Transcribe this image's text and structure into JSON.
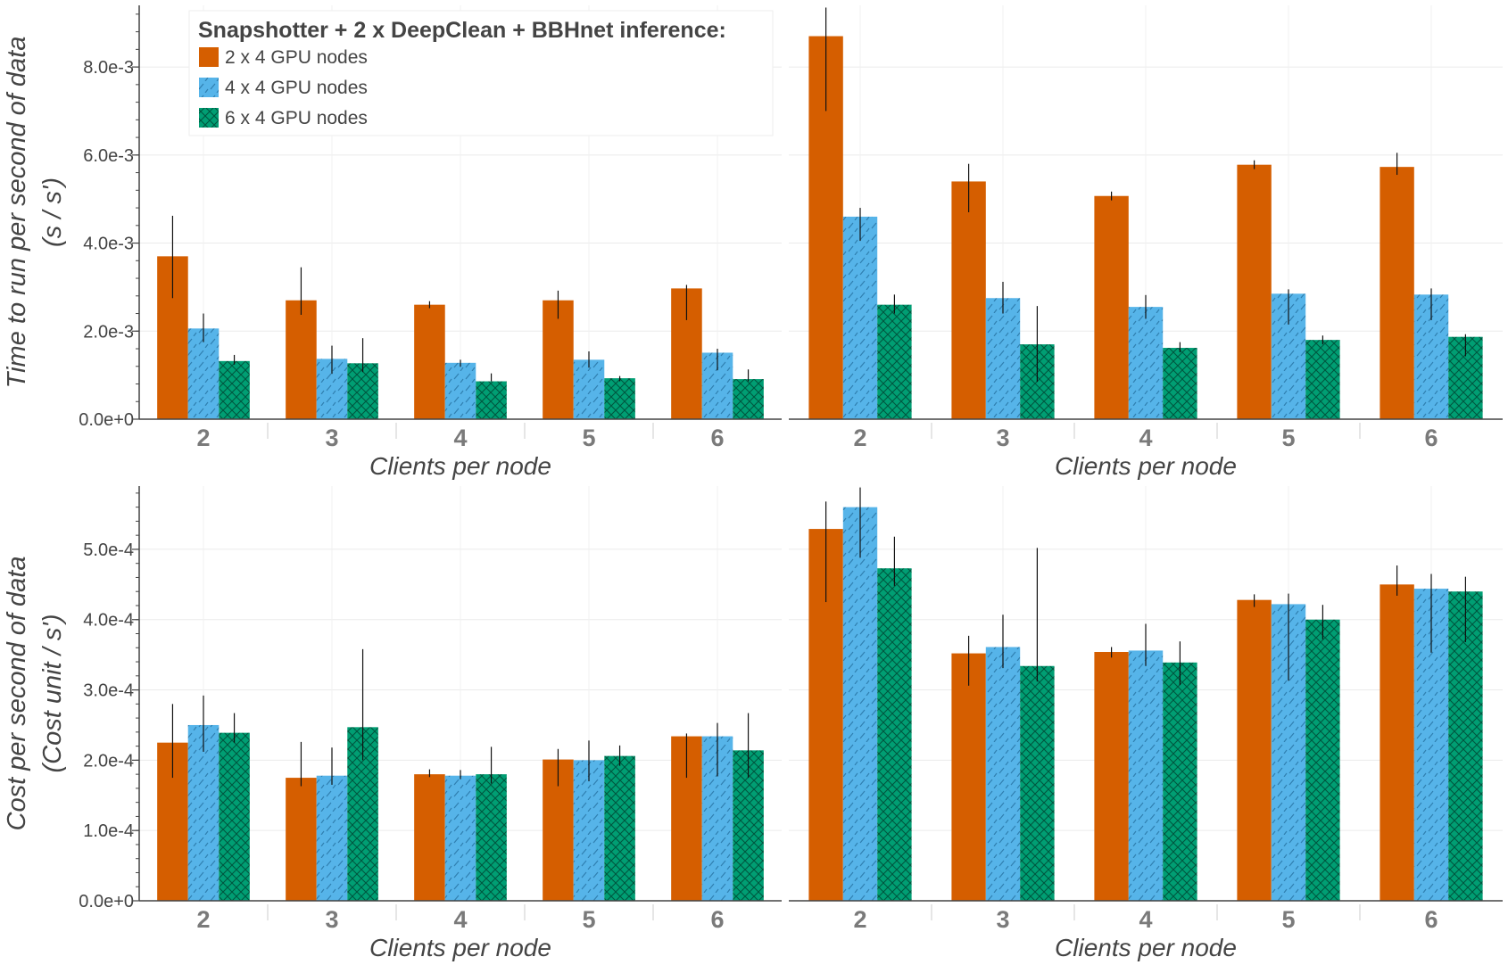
{
  "legend": {
    "title": "Snapshotter + 2 x DeepClean + BBHnet inference:",
    "placement": "top-left"
  },
  "series_styles": [
    {
      "name": "2 x 4 GPU nodes",
      "color": "#d55e00",
      "pattern": "solid"
    },
    {
      "name": "4 x 4 GPU nodes",
      "color": "#56b4e9",
      "pattern": "dashes"
    },
    {
      "name": "6 x 4 GPU nodes",
      "color": "#009e73",
      "pattern": "crosshatch"
    }
  ],
  "chart_data": [
    {
      "type": "bar",
      "panel": "top-left",
      "categories": [
        "2",
        "3",
        "4",
        "5",
        "6"
      ],
      "xlabel": "Clients per node",
      "ylabel": [
        "Time to run per second of data",
        "(s / s')"
      ],
      "ylim": [
        0,
        0.0094
      ],
      "yticks": [
        0,
        0.002,
        0.004,
        0.006,
        0.008
      ],
      "ytick_labels": [
        "0.0e+0",
        "2.0e-3",
        "4.0e-3",
        "6.0e-3",
        "8.0e-3"
      ],
      "grid": true,
      "series": [
        {
          "name": "2 x 4 GPU nodes",
          "values": [
            0.0037,
            0.0027,
            0.0026,
            0.0027,
            0.00297
          ],
          "err_low": [
            0.00275,
            0.00237,
            0.00252,
            0.00228,
            0.00225
          ],
          "err_high": [
            0.00462,
            0.00345,
            0.00268,
            0.00292,
            0.00305
          ]
        },
        {
          "name": "4 x 4 GPU nodes",
          "values": [
            0.00206,
            0.00137,
            0.00128,
            0.00135,
            0.00151
          ],
          "err_low": [
            0.00175,
            0.00103,
            0.00119,
            0.00117,
            0.00111
          ],
          "err_high": [
            0.0024,
            0.00167,
            0.00135,
            0.00154,
            0.0016
          ]
        },
        {
          "name": "6 x 4 GPU nodes",
          "values": [
            0.00132,
            0.00127,
            0.00086,
            0.00093,
            0.00091
          ],
          "err_low": [
            0.00124,
            0.00107,
            0.00086,
            0.00086,
            0.00086
          ],
          "err_high": [
            0.00146,
            0.00184,
            0.00104,
            0.00098,
            0.00113
          ]
        }
      ]
    },
    {
      "type": "bar",
      "panel": "top-right",
      "categories": [
        "2",
        "3",
        "4",
        "5",
        "6"
      ],
      "xlabel": "Clients per node",
      "ylim": [
        0,
        0.0094
      ],
      "yticks": [
        0,
        0.002,
        0.004,
        0.006,
        0.008
      ],
      "grid": true,
      "series": [
        {
          "name": "2 x 4 GPU nodes",
          "values": [
            0.0087,
            0.0054,
            0.00507,
            0.00578,
            0.00573
          ],
          "err_low": [
            0.007,
            0.0047,
            0.00497,
            0.00568,
            0.00555
          ],
          "err_high": [
            0.00935,
            0.0058,
            0.00517,
            0.00588,
            0.00605
          ]
        },
        {
          "name": "4 x 4 GPU nodes",
          "values": [
            0.0046,
            0.00275,
            0.00255,
            0.00285,
            0.00283
          ],
          "err_low": [
            0.00405,
            0.0024,
            0.00228,
            0.00215,
            0.00225
          ],
          "err_high": [
            0.0048,
            0.00312,
            0.00282,
            0.00295,
            0.00297
          ]
        },
        {
          "name": "6 x 4 GPU nodes",
          "values": [
            0.0026,
            0.0017,
            0.00162,
            0.0018,
            0.00187
          ],
          "err_low": [
            0.0024,
            0.00085,
            0.00152,
            0.0017,
            0.00143
          ],
          "err_high": [
            0.00283,
            0.00257,
            0.00175,
            0.0019,
            0.00193
          ]
        }
      ]
    },
    {
      "type": "bar",
      "panel": "bottom-left",
      "categories": [
        "2",
        "3",
        "4",
        "5",
        "6"
      ],
      "xlabel": "Clients per node",
      "ylabel": [
        "Cost per second of data",
        "(Cost unit / s')"
      ],
      "ylim": [
        0,
        0.00059
      ],
      "yticks": [
        0,
        0.0001,
        0.0002,
        0.0003,
        0.0004,
        0.0005
      ],
      "ytick_labels": [
        "0.0e+0",
        "1.0e-4",
        "2.0e-4",
        "3.0e-4",
        "4.0e-4",
        "5.0e-4"
      ],
      "grid": true,
      "series": [
        {
          "name": "2 x 4 GPU nodes",
          "values": [
            0.000225,
            0.000175,
            0.00018,
            0.000201,
            0.000234
          ],
          "err_low": [
            0.000175,
            0.000163,
            0.000176,
            0.000163,
            0.000175
          ],
          "err_high": [
            0.00028,
            0.000226,
            0.000187,
            0.000216,
            0.000238
          ]
        },
        {
          "name": "4 x 4 GPU nodes",
          "values": [
            0.00025,
            0.000178,
            0.000178,
            0.0002,
            0.000234
          ],
          "err_low": [
            0.000212,
            0.000165,
            0.000173,
            0.00017,
            0.000177
          ],
          "err_high": [
            0.000292,
            0.000218,
            0.000186,
            0.000228,
            0.000253
          ]
        },
        {
          "name": "6 x 4 GPU nodes",
          "values": [
            0.000239,
            0.000247,
            0.00018,
            0.000206,
            0.000214
          ],
          "err_low": [
            0.000225,
            0.0002,
            0.000167,
            0.000192,
            0.000175
          ],
          "err_high": [
            0.000267,
            0.000358,
            0.000219,
            0.000221,
            0.000267
          ]
        }
      ]
    },
    {
      "type": "bar",
      "panel": "bottom-right",
      "categories": [
        "2",
        "3",
        "4",
        "5",
        "6"
      ],
      "xlabel": "Clients per node",
      "ylim": [
        0,
        0.00059
      ],
      "yticks": [
        0,
        0.0001,
        0.0002,
        0.0003,
        0.0004,
        0.0005
      ],
      "grid": true,
      "series": [
        {
          "name": "2 x 4 GPU nodes",
          "values": [
            0.000529,
            0.000352,
            0.000354,
            0.000428,
            0.00045
          ],
          "err_low": [
            0.000425,
            0.000306,
            0.000346,
            0.000418,
            0.000434
          ],
          "err_high": [
            0.000568,
            0.000377,
            0.000361,
            0.000436,
            0.000477
          ]
        },
        {
          "name": "4 x 4 GPU nodes",
          "values": [
            0.00056,
            0.000361,
            0.000356,
            0.000422,
            0.000444
          ],
          "err_low": [
            0.000488,
            0.000331,
            0.000334,
            0.000313,
            0.000353
          ],
          "err_high": [
            0.000588,
            0.000407,
            0.000394,
            0.000437,
            0.000465
          ]
        },
        {
          "name": "6 x 4 GPU nodes",
          "values": [
            0.000473,
            0.000334,
            0.000339,
            0.0004,
            0.00044
          ],
          "err_low": [
            0.000448,
            0.000312,
            0.000307,
            0.000372,
            0.000368
          ],
          "err_high": [
            0.000518,
            0.000502,
            0.000369,
            0.000421,
            0.000461
          ]
        }
      ]
    }
  ]
}
